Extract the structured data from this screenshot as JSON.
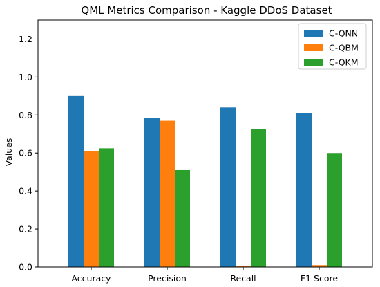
{
  "chart_data": {
    "type": "bar",
    "title": "QML Metrics Comparison - Kaggle DDoS Dataset",
    "xlabel": "",
    "ylabel": "Values",
    "categories": [
      "Accuracy",
      "Precision",
      "Recall",
      "F1 Score"
    ],
    "series": [
      {
        "name": "C-QNN",
        "color": "#1f77b4",
        "values": [
          0.9,
          0.785,
          0.84,
          0.81
        ]
      },
      {
        "name": "C-QBM",
        "color": "#ff7f0e",
        "values": [
          0.61,
          0.77,
          0.005,
          0.01
        ]
      },
      {
        "name": "C-QKM",
        "color": "#2ca02c",
        "values": [
          0.625,
          0.51,
          0.725,
          0.6
        ]
      }
    ],
    "ylim": [
      0,
      1.3
    ],
    "yticks": [
      0.0,
      0.2,
      0.4,
      0.6,
      0.8,
      1.0,
      1.2
    ],
    "ytick_labels": [
      "0.0",
      "0.2",
      "0.4",
      "0.6",
      "0.8",
      "1.0",
      "1.2"
    ],
    "grid": false,
    "legend_position": "top-right"
  }
}
